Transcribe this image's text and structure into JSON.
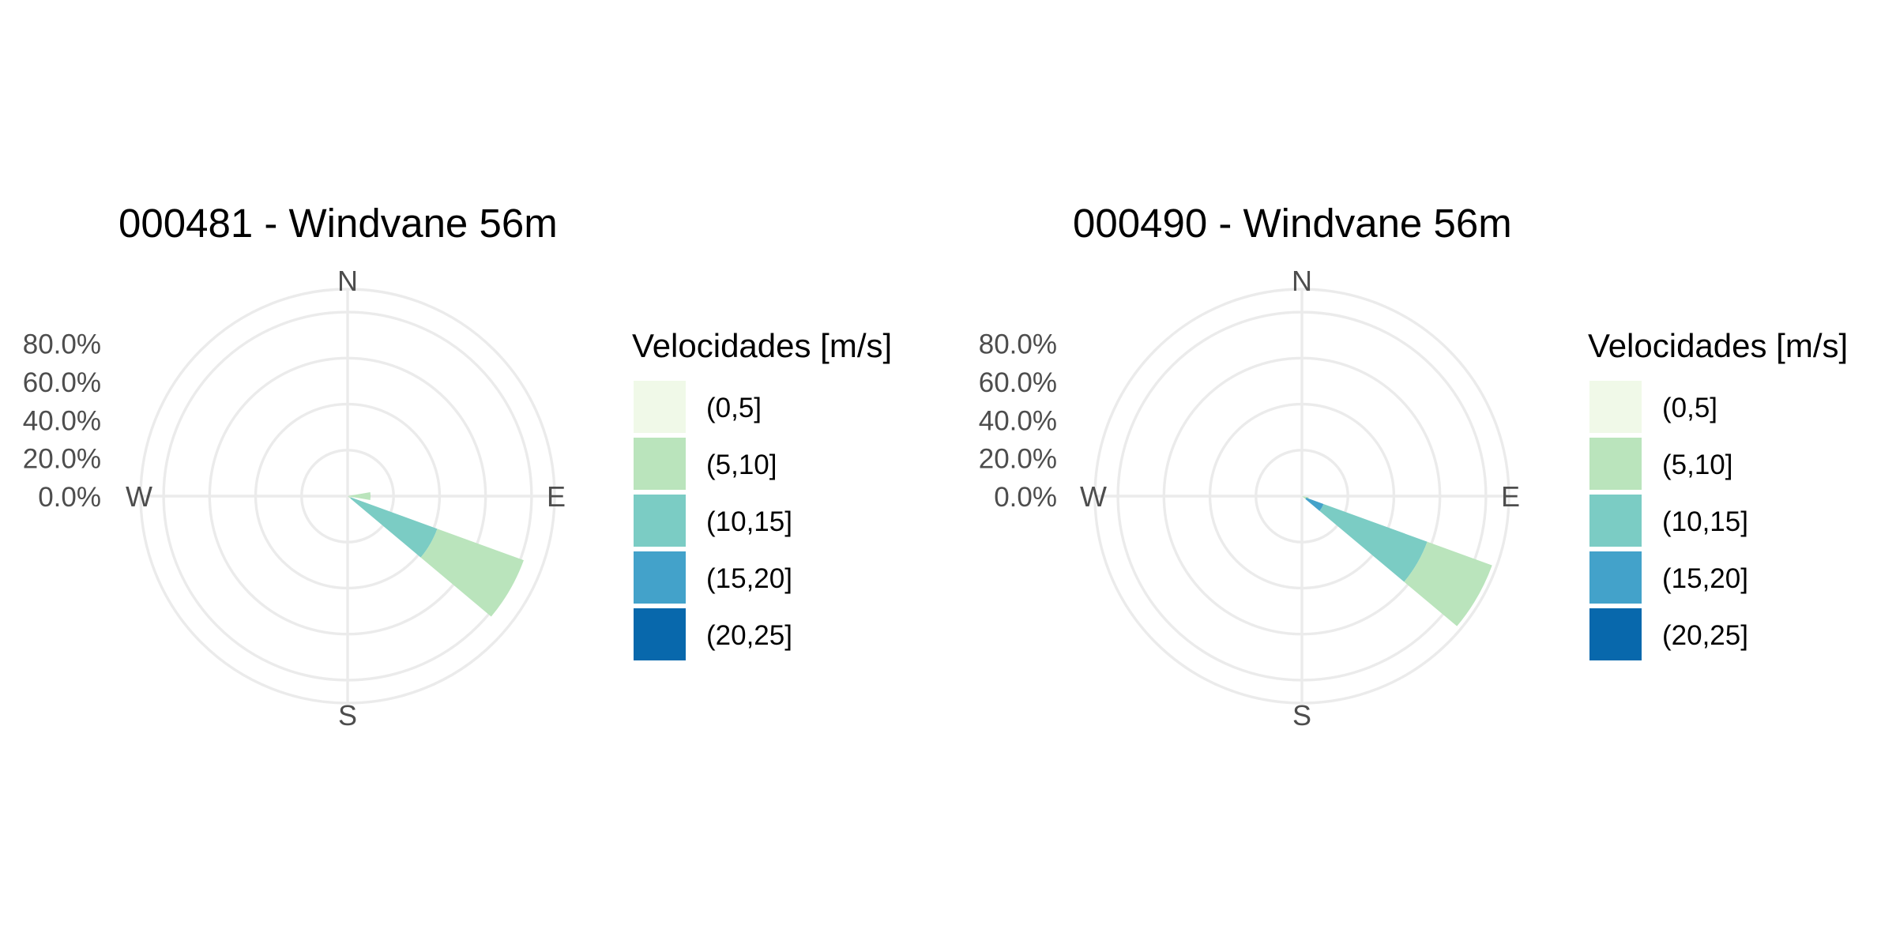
{
  "chart_data": [
    {
      "type": "windrose",
      "title": "000481 - Windvane 56m",
      "directions": [
        "N",
        "E",
        "S",
        "W"
      ],
      "radial_ticks": [
        "0.0%",
        "20.0%",
        "40.0%",
        "60.0%",
        "80.0%"
      ],
      "radial_range": [
        0,
        90
      ],
      "grid": true,
      "legend_position": "right",
      "legend": {
        "title": "Velocidades [m/s]",
        "entries": [
          {
            "label": "(0,5]",
            "color": "#f0f9e8"
          },
          {
            "label": "(5,10]",
            "color": "#bae4bc"
          },
          {
            "label": "(10,15]",
            "color": "#7bccc4"
          },
          {
            "label": "(15,20]",
            "color": "#43a2ca"
          },
          {
            "label": "(20,25]",
            "color": "#0868ac"
          }
        ]
      },
      "sectors": [
        {
          "direction_start": 80,
          "direction_end": 100,
          "stacks": [
            {
              "bin": "(0,5]",
              "percent": 0
            },
            {
              "bin": "(5,10]",
              "percent": 10
            }
          ]
        },
        {
          "direction_start": 110,
          "direction_end": 130,
          "stacks": [
            {
              "bin": "(0,5]",
              "percent": 0
            },
            {
              "bin": "(5,10]",
              "percent": 1.5
            },
            {
              "bin": "(10,15]",
              "percent": 40
            },
            {
              "bin": "(5,10]",
              "percent": 40
            }
          ]
        }
      ]
    },
    {
      "type": "windrose",
      "title": "000490 - Windvane 56m",
      "directions": [
        "N",
        "E",
        "S",
        "W"
      ],
      "radial_ticks": [
        "0.0%",
        "20.0%",
        "40.0%",
        "60.0%",
        "80.0%"
      ],
      "radial_range": [
        0,
        90
      ],
      "grid": true,
      "legend_position": "right",
      "legend": {
        "title": "Velocidades [m/s]",
        "entries": [
          {
            "label": "(0,5]",
            "color": "#f0f9e8"
          },
          {
            "label": "(5,10]",
            "color": "#bae4bc"
          },
          {
            "label": "(10,15]",
            "color": "#7bccc4"
          },
          {
            "label": "(15,20]",
            "color": "#43a2ca"
          },
          {
            "label": "(20,25]",
            "color": "#0868ac"
          }
        ]
      },
      "sectors": [
        {
          "direction_start": 100,
          "direction_end": 120,
          "stacks": [
            {
              "bin": "(5,10]",
              "percent": 3
            }
          ]
        },
        {
          "direction_start": 110,
          "direction_end": 130,
          "stacks": [
            {
              "bin": "(5,10]",
              "percent": 2
            },
            {
              "bin": "(15,20]",
              "percent": 8
            },
            {
              "bin": "(10,15]",
              "percent": 48
            },
            {
              "bin": "(5,10]",
              "percent": 30
            }
          ]
        }
      ]
    }
  ]
}
